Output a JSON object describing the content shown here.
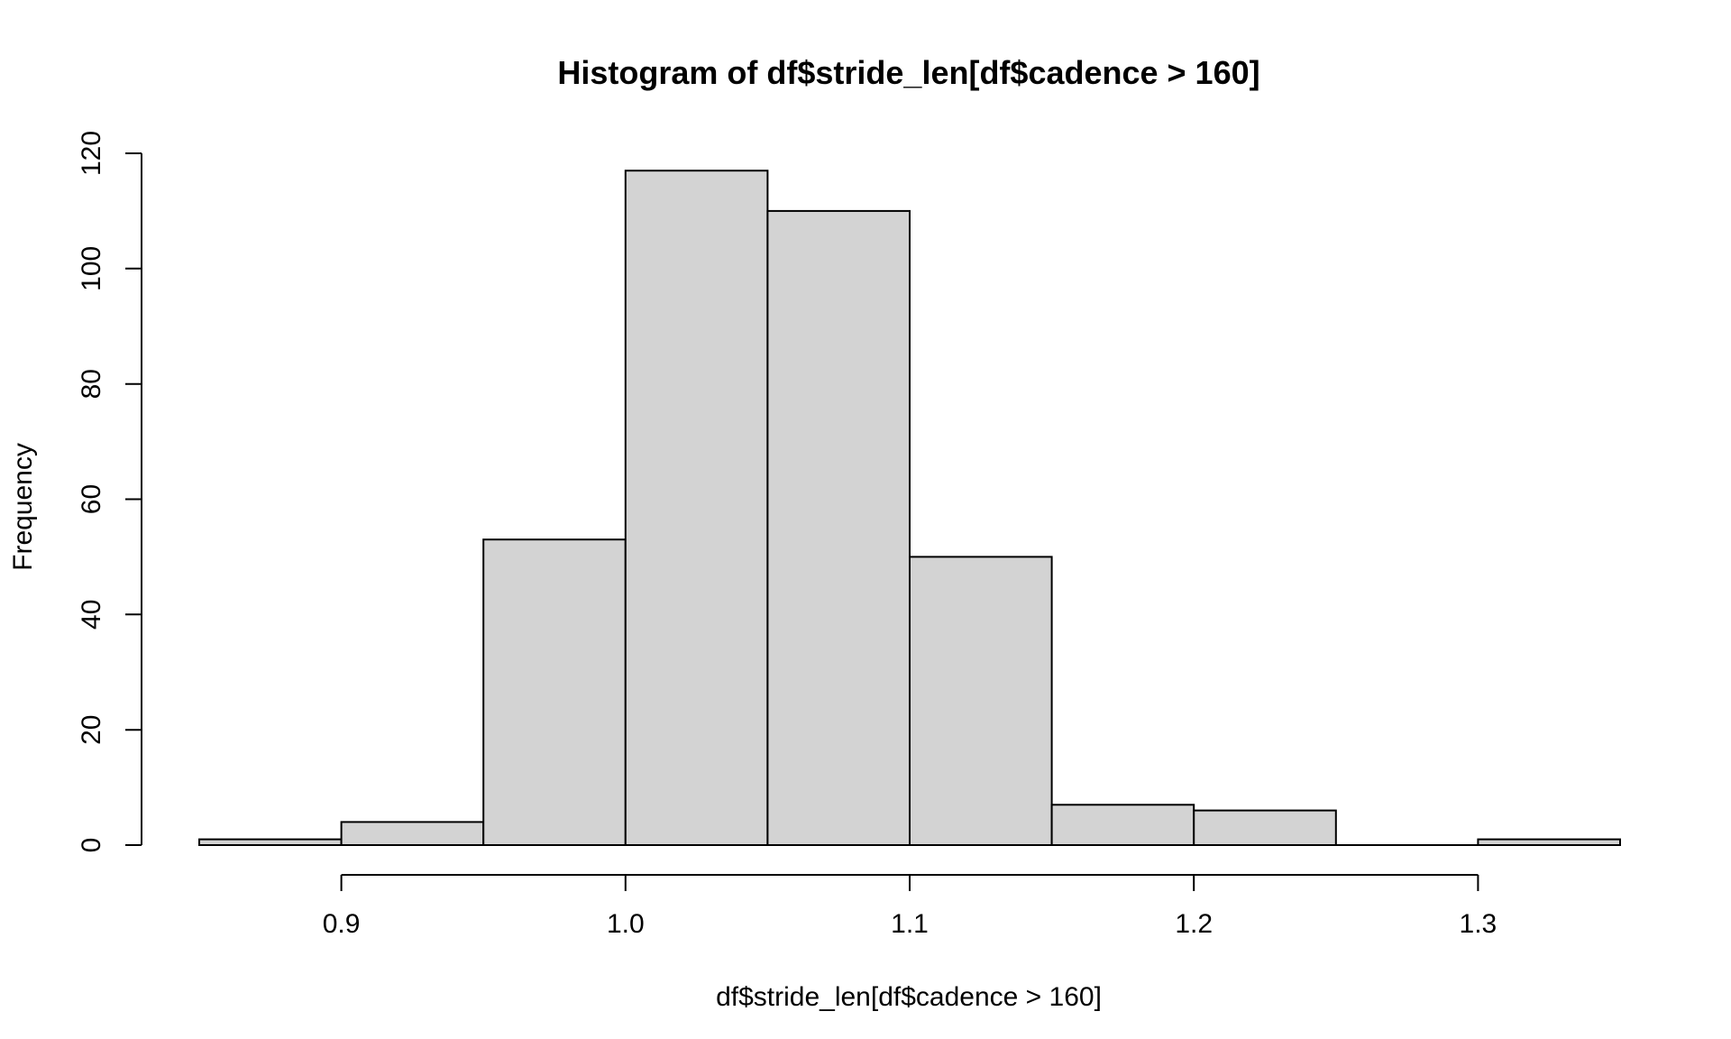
{
  "chart_data": {
    "type": "bar",
    "subtype": "histogram",
    "title": "Histogram of df$stride_len[df$cadence > 160]",
    "xlabel": "df$stride_len[df$cadence > 160]",
    "ylabel": "Frequency",
    "bins": [
      {
        "start": 0.85,
        "end": 0.9,
        "count": 1
      },
      {
        "start": 0.9,
        "end": 0.95,
        "count": 4
      },
      {
        "start": 0.95,
        "end": 1.0,
        "count": 53
      },
      {
        "start": 1.0,
        "end": 1.05,
        "count": 117
      },
      {
        "start": 1.05,
        "end": 1.1,
        "count": 110
      },
      {
        "start": 1.1,
        "end": 1.15,
        "count": 50
      },
      {
        "start": 1.15,
        "end": 1.2,
        "count": 7
      },
      {
        "start": 1.2,
        "end": 1.25,
        "count": 6
      },
      {
        "start": 1.25,
        "end": 1.3,
        "count": 0
      },
      {
        "start": 1.3,
        "end": 1.35,
        "count": 1
      }
    ],
    "xlim": [
      0.85,
      1.35
    ],
    "ylim": [
      0,
      120
    ],
    "x_ticks": [
      {
        "value": 0.9,
        "label": "0.9"
      },
      {
        "value": 1.0,
        "label": "1.0"
      },
      {
        "value": 1.1,
        "label": "1.1"
      },
      {
        "value": 1.2,
        "label": "1.2"
      },
      {
        "value": 1.3,
        "label": "1.3"
      }
    ],
    "y_ticks": [
      {
        "value": 0,
        "label": "0"
      },
      {
        "value": 20,
        "label": "20"
      },
      {
        "value": 40,
        "label": "40"
      },
      {
        "value": 60,
        "label": "60"
      },
      {
        "value": 80,
        "label": "80"
      },
      {
        "value": 100,
        "label": "100"
      },
      {
        "value": 120,
        "label": "120"
      }
    ],
    "grid": false,
    "bar_color": "#d3d3d3",
    "border_color": "#000000"
  }
}
